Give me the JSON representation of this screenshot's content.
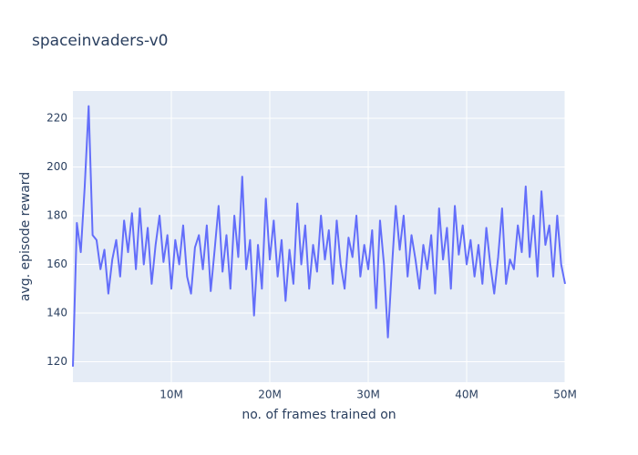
{
  "chart_data": {
    "type": "line",
    "title": "spaceinvaders-v0",
    "x_label": "no. of frames trained on",
    "y_label": "avg. episode reward",
    "color": "#636efa",
    "grid": true,
    "x": [
      0,
      400000,
      800000,
      1200000,
      1600000,
      2000000,
      2400000,
      2800000,
      3200000,
      3600000,
      4000000,
      4400000,
      4800000,
      5200000,
      5600000,
      6000000,
      6400000,
      6800000,
      7200000,
      7600000,
      8000000,
      8400000,
      8800000,
      9200000,
      9600000,
      10000000,
      10400000,
      10800000,
      11200000,
      11600000,
      12000000,
      12400000,
      12800000,
      13200000,
      13600000,
      14000000,
      14400000,
      14800000,
      15200000,
      15600000,
      16000000,
      16400000,
      16800000,
      17200000,
      17600000,
      18000000,
      18400000,
      18800000,
      19200000,
      19600000,
      20000000,
      20400000,
      20800000,
      21200000,
      21600000,
      22000000,
      22400000,
      22800000,
      23200000,
      23600000,
      24000000,
      24400000,
      24800000,
      25200000,
      25600000,
      26000000,
      26400000,
      26800000,
      27200000,
      27600000,
      28000000,
      28400000,
      28800000,
      29200000,
      29600000,
      30000000,
      30400000,
      30800000,
      31200000,
      31600000,
      32000000,
      32400000,
      32800000,
      33200000,
      33600000,
      34000000,
      34400000,
      34800000,
      35200000,
      35600000,
      36000000,
      36400000,
      36800000,
      37200000,
      37600000,
      38000000,
      38400000,
      38800000,
      39200000,
      39600000,
      40000000,
      40400000,
      40800000,
      41200000,
      41600000,
      42000000,
      42400000,
      42800000,
      43200000,
      43600000,
      44000000,
      44400000,
      44800000,
      45200000,
      45600000,
      46000000,
      46400000,
      46800000,
      47200000,
      47600000,
      48000000,
      48400000,
      48800000,
      49200000,
      49600000,
      50000000
    ],
    "values": [
      118,
      177,
      165,
      192,
      225,
      172,
      170,
      158,
      166,
      148,
      162,
      170,
      155,
      178,
      165,
      181,
      158,
      183,
      160,
      175,
      152,
      168,
      180,
      161,
      172,
      150,
      170,
      160,
      176,
      155,
      148,
      167,
      172,
      158,
      176,
      149,
      166,
      184,
      157,
      172,
      150,
      180,
      163,
      196,
      158,
      170,
      139,
      168,
      150,
      187,
      162,
      178,
      155,
      170,
      145,
      166,
      152,
      185,
      160,
      176,
      150,
      168,
      157,
      180,
      162,
      174,
      152,
      178,
      160,
      150,
      171,
      163,
      180,
      155,
      168,
      158,
      174,
      142,
      178,
      160,
      130,
      158,
      184,
      166,
      180,
      155,
      172,
      162,
      150,
      168,
      158,
      172,
      148,
      183,
      162,
      175,
      150,
      184,
      164,
      176,
      160,
      170,
      155,
      168,
      152,
      175,
      160,
      148,
      163,
      183,
      152,
      162,
      158,
      176,
      165,
      192,
      163,
      180,
      155,
      190,
      168,
      176,
      155,
      180,
      160,
      152
    ],
    "xlim": [
      0,
      50000000
    ],
    "xticks": [
      {
        "value": 10000000,
        "label": "10M"
      },
      {
        "value": 20000000,
        "label": "20M"
      },
      {
        "value": 30000000,
        "label": "30M"
      },
      {
        "value": 40000000,
        "label": "40M"
      },
      {
        "value": 50000000,
        "label": "50M"
      }
    ],
    "ylim": [
      111.6,
      231.2
    ],
    "yticks": [
      120,
      140,
      160,
      180,
      200,
      220
    ]
  }
}
